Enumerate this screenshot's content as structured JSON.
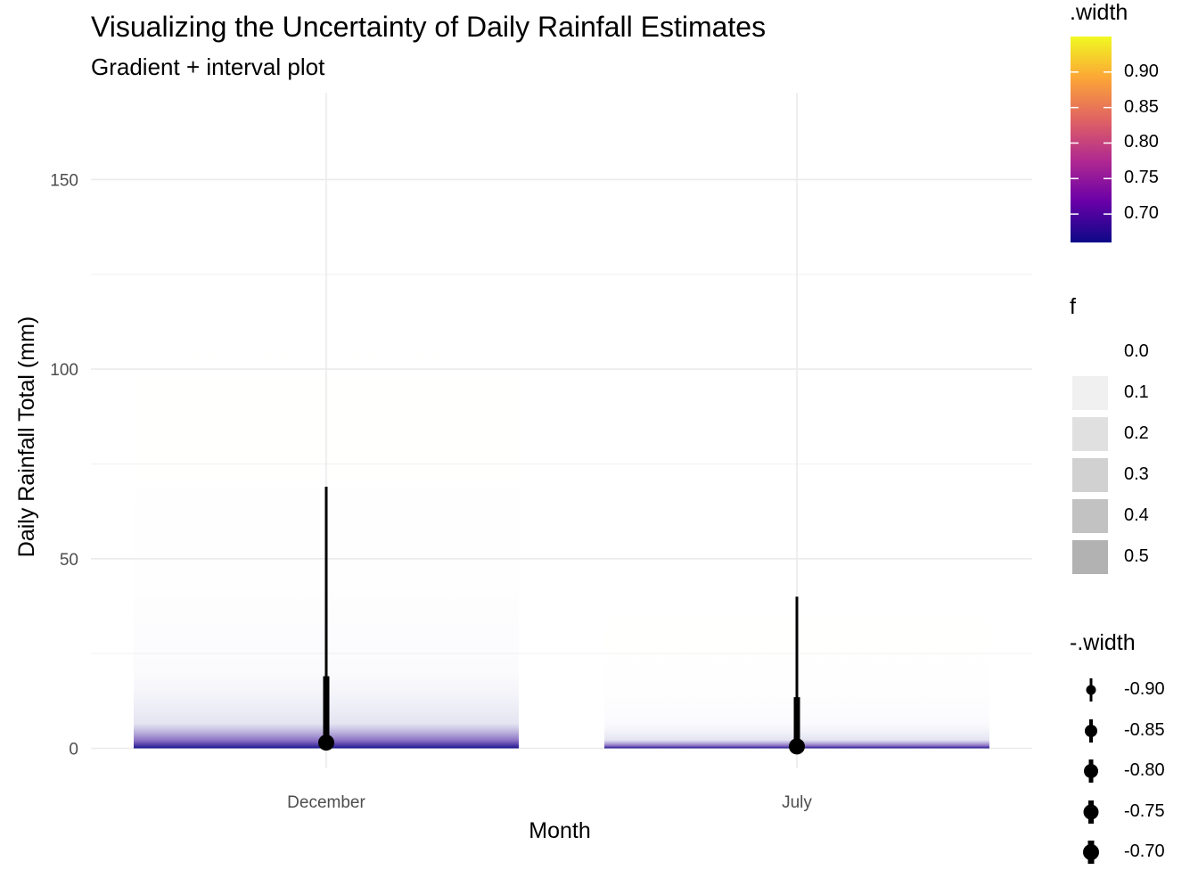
{
  "chart_data": {
    "type": "gradient-interval",
    "title": "Visualizing the Uncertainty of Daily Rainfall Estimates",
    "subtitle": "Gradient + interval plot",
    "xlabel": "Month",
    "ylabel": "Daily Rainfall Total (mm)",
    "categories": [
      "December",
      "July"
    ],
    "ylim": [
      -5,
      172
    ],
    "yticks": [
      0,
      50,
      100,
      150
    ],
    "grid": true,
    "series": [
      {
        "category": "December",
        "point": 1.5,
        "intervals": [
          {
            "width": 0.95,
            "lower": 0,
            "upper": 69
          },
          {
            "width": 0.66,
            "lower": 0,
            "upper": 19
          }
        ],
        "gradient_max": 165
      },
      {
        "category": "July",
        "point": 0.5,
        "intervals": [
          {
            "width": 0.95,
            "lower": 0,
            "upper": 40
          },
          {
            "width": 0.66,
            "lower": 0,
            "upper": 13.5
          }
        ],
        "gradient_max": 56
      }
    ],
    "legends": {
      "width_color": {
        "title": ".width",
        "breaks": [
          "0.90",
          "0.85",
          "0.80",
          "0.75",
          "0.70"
        ],
        "break_values": [
          0.9,
          0.85,
          0.8,
          0.75,
          0.7
        ],
        "range": [
          0.66,
          0.95
        ],
        "colors": [
          "#0d0887",
          "#6a00a8",
          "#b12a90",
          "#e16462",
          "#fca636",
          "#f0f921"
        ]
      },
      "f_alpha": {
        "title": "f",
        "labels": [
          "0.0",
          "0.1",
          "0.2",
          "0.3",
          "0.4",
          "0.5"
        ],
        "values": [
          0.0,
          0.1,
          0.2,
          0.3,
          0.4,
          0.5
        ]
      },
      "neg_width": {
        "title": "-.width",
        "labels": [
          "-0.90",
          "-0.85",
          "-0.80",
          "-0.75",
          "-0.70"
        ]
      }
    }
  }
}
